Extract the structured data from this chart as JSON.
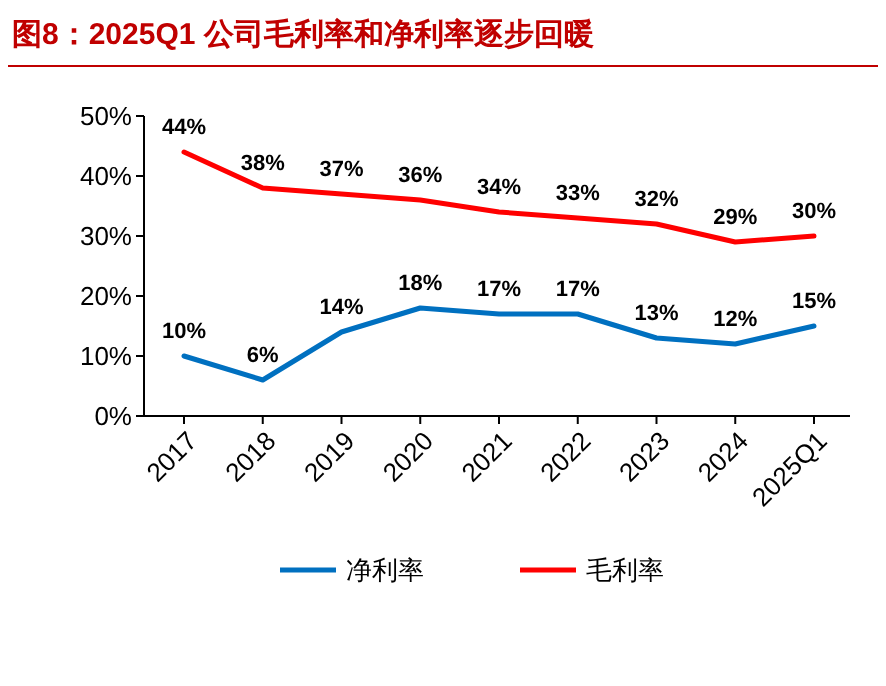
{
  "chart_data": {
    "type": "line",
    "title": "图8：2025Q1 公司毛利率和净利率逐步回暖",
    "categories": [
      "2017",
      "2018",
      "2019",
      "2020",
      "2021",
      "2022",
      "2023",
      "2024",
      "2025Q1"
    ],
    "series": [
      {
        "name": "净利率",
        "color": "#0070c0",
        "values": [
          10,
          6,
          14,
          18,
          17,
          17,
          13,
          12,
          15
        ],
        "value_labels": [
          "10%",
          "6%",
          "14%",
          "18%",
          "17%",
          "17%",
          "13%",
          "12%",
          "15%"
        ]
      },
      {
        "name": "毛利率",
        "color": "#ff0000",
        "values": [
          44,
          38,
          37,
          36,
          34,
          33,
          32,
          29,
          30
        ],
        "value_labels": [
          "44%",
          "38%",
          "37%",
          "36%",
          "34%",
          "33%",
          "32%",
          "29%",
          "30%"
        ]
      }
    ],
    "ylim": [
      0,
      50
    ],
    "yticks": [
      {
        "value": 0,
        "label": "0%"
      },
      {
        "value": 10,
        "label": "10%"
      },
      {
        "value": 20,
        "label": "20%"
      },
      {
        "value": 30,
        "label": "30%"
      },
      {
        "value": 40,
        "label": "40%"
      },
      {
        "value": 50,
        "label": "50%"
      }
    ],
    "grid": false,
    "legend": "bottom",
    "marker": "none",
    "line_style": "solid"
  }
}
